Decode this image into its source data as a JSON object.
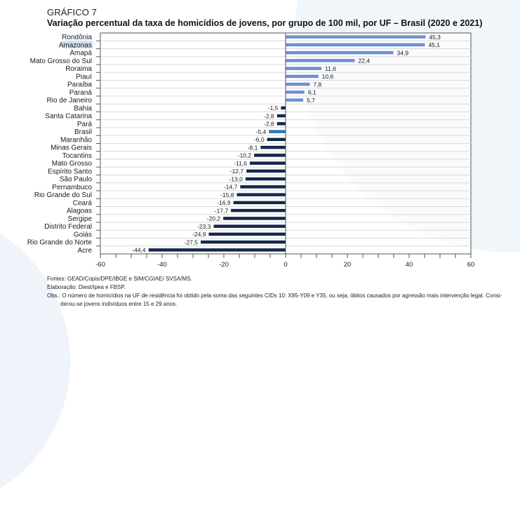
{
  "header": {
    "kicker": "GRÁFICO 7",
    "title": "Variação percentual da taxa de homicídios de jovens, por grupo de 100 mil, por UF – Brasil (2020 e 2021)"
  },
  "colors": {
    "positive": "#6f8fcf",
    "negative": "#14284b",
    "highlight": "#2e75b6",
    "label_selection": "#cfe2f3"
  },
  "selected_label": "Amazonas",
  "chart_data": {
    "type": "bar",
    "orientation": "horizontal",
    "title": "Variação percentual da taxa de homicídios de jovens, por grupo de 100 mil, por UF – Brasil (2020 e 2021)",
    "xlabel": "",
    "ylabel": "",
    "xlim": [
      -60,
      60
    ],
    "xticks": [
      -60,
      -40,
      -20,
      0,
      20,
      40,
      60
    ],
    "xtick_labels": [
      "-60",
      "-40",
      "-20",
      "0",
      "20",
      "40",
      "60"
    ],
    "minor_tick_step": 5,
    "grid": "horizontal",
    "categories": [
      "Rondônia",
      "Amazonas",
      "Amapá",
      "Mato Grosso do Sul",
      "Roraima",
      "Piauí",
      "Paraíba",
      "Paraná",
      "Rio de Janeiro",
      "Bahia",
      "Santa Catarina",
      "Pará",
      "Brasil",
      "Maranhão",
      "Minas Gerais",
      "Tocantins",
      "Mato Grosso",
      "Espírito Santo",
      "São Paulo",
      "Pernambuco",
      "Rio Grande do Sul",
      "Ceará",
      "Alagoas",
      "Sergipe",
      "Distrito Federal",
      "Goiás",
      "Rio Grande do Norte",
      "Acre"
    ],
    "values": [
      45.3,
      45.1,
      34.9,
      22.4,
      11.6,
      10.6,
      7.8,
      6.1,
      5.7,
      -1.5,
      -2.8,
      -2.8,
      -5.4,
      -6.0,
      -8.1,
      -10.2,
      -11.6,
      -12.7,
      -13.0,
      -14.7,
      -15.8,
      -16.9,
      -17.7,
      -20.2,
      -23.3,
      -24.9,
      -27.5,
      -44.4
    ],
    "value_labels": [
      "45,3",
      "45,1",
      "34,9",
      "22,4",
      "11,6",
      "10,6",
      "7,8",
      "6,1",
      "5,7",
      "-1,5",
      "-2,8",
      "-2,8",
      "-5,4",
      "-6,0",
      "-8,1",
      "-10,2",
      "-11,6",
      "-12,7",
      "-13,0",
      "-14,7",
      "-15,8",
      "-16,9",
      "-17,7",
      "-20,2",
      "-23,3",
      "-24,9",
      "-27,5",
      "-44,4"
    ],
    "highlighted_category": "Brasil"
  },
  "footnotes": {
    "fontes": "Fontes: GEAD/Copis/DPE/IBGE e SIM/CGIAE/ SVSA/MS.",
    "elaboracao": "Elaboração: Diest/Ipea e FBSP.",
    "obs_line1": "Obs.: O número de homicídios na UF de residência foi obtido pela soma das seguintes CIDs 10: X85-Y09 e Y35, ou seja, óbitos causados por agressão mais intervenção legal. Consi-",
    "obs_line2": "derou-se jovens indivíduos entre 15 e 29 anos."
  }
}
